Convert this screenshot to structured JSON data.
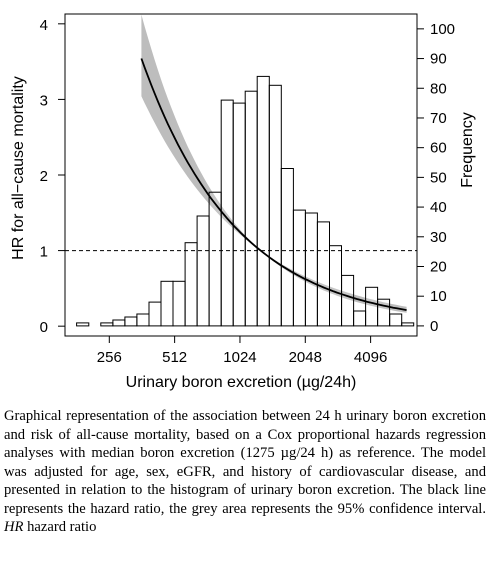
{
  "chart_data": {
    "type": "histogram+line",
    "x_ticks": [
      {
        "value": 256,
        "label": "256"
      },
      {
        "value": 512,
        "label": "512"
      },
      {
        "value": 1024,
        "label": "1024"
      },
      {
        "value": 2048,
        "label": "2048"
      },
      {
        "value": 4096,
        "label": "4096"
      }
    ],
    "x_scale": "log2",
    "xlim": [
      160,
      6700
    ],
    "xlabel": "Urinary boron excretion (µg/24h)",
    "y_left": {
      "label": "HR for all−cause mortality",
      "ylim": [
        -0.13,
        4.13
      ],
      "ticks": [
        0,
        1,
        2,
        3,
        4
      ]
    },
    "y_right": {
      "label": "Frequency",
      "ylim": [
        -3.4,
        105
      ],
      "ticks": [
        0,
        10,
        20,
        30,
        40,
        50,
        60,
        70,
        80,
        90,
        100
      ]
    },
    "reference_line": {
      "y": 1,
      "style": "dashed"
    },
    "histogram": {
      "bins": [
        {
          "x0": 181,
          "x1": 206,
          "count": 1
        },
        {
          "x0": 206,
          "x1": 234,
          "count": 0
        },
        {
          "x0": 234,
          "x1": 266,
          "count": 1
        },
        {
          "x0": 266,
          "x1": 302,
          "count": 2
        },
        {
          "x0": 302,
          "x1": 343,
          "count": 3
        },
        {
          "x0": 343,
          "x1": 390,
          "count": 4
        },
        {
          "x0": 390,
          "x1": 443,
          "count": 8
        },
        {
          "x0": 443,
          "x1": 503,
          "count": 15
        },
        {
          "x0": 503,
          "x1": 572,
          "count": 15
        },
        {
          "x0": 572,
          "x1": 650,
          "count": 28
        },
        {
          "x0": 650,
          "x1": 738,
          "count": 37
        },
        {
          "x0": 738,
          "x1": 839,
          "count": 45
        },
        {
          "x0": 839,
          "x1": 953,
          "count": 76
        },
        {
          "x0": 953,
          "x1": 1083,
          "count": 75
        },
        {
          "x0": 1083,
          "x1": 1230,
          "count": 79
        },
        {
          "x0": 1230,
          "x1": 1398,
          "count": 84
        },
        {
          "x0": 1398,
          "x1": 1588,
          "count": 81
        },
        {
          "x0": 1588,
          "x1": 1805,
          "count": 53
        },
        {
          "x0": 1805,
          "x1": 2051,
          "count": 39
        },
        {
          "x0": 2051,
          "x1": 2330,
          "count": 38
        },
        {
          "x0": 2330,
          "x1": 2648,
          "count": 35
        },
        {
          "x0": 2648,
          "x1": 3009,
          "count": 27
        },
        {
          "x0": 3009,
          "x1": 3418,
          "count": 17
        },
        {
          "x0": 3418,
          "x1": 3884,
          "count": 5
        },
        {
          "x0": 3884,
          "x1": 4413,
          "count": 13
        },
        {
          "x0": 4413,
          "x1": 5014,
          "count": 9
        },
        {
          "x0": 5014,
          "x1": 5697,
          "count": 4
        },
        {
          "x0": 5697,
          "x1": 6473,
          "count": 1
        }
      ]
    },
    "hazard_ratio": {
      "reference_value": 1275,
      "exponent": -1.0,
      "x_range": [
        360,
        6000
      ],
      "ci_lower_exponent": -0.88,
      "ci_upper_exponent": -1.12
    }
  },
  "caption": {
    "text": "Graphical representation of the association between 24 h urinary boron excretion and risk of all-cause mortality, based on a Cox proportional hazards regression analyses with median boron excretion (1275 µg/24 h) as reference. The model was adjusted for age, sex, eGFR, and history of cardiovascular disease, and presented in relation to the histogram of urinary boron excretion. The black line represents the hazard ratio, the grey area represents the 95% confidence interval.",
    "abbrev_term": "HR",
    "abbrev_text": " hazard ratio"
  }
}
